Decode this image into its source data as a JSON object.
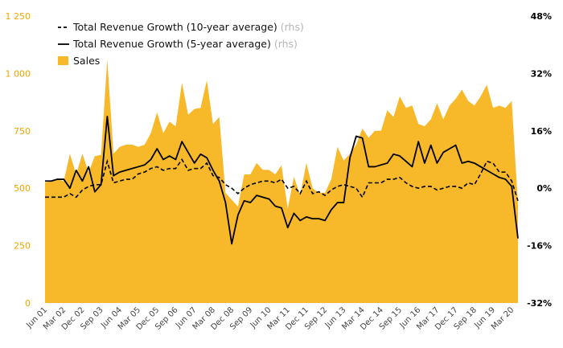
{
  "chart_data": {
    "type": "area",
    "legend": {
      "placement": "top-left",
      "rhs_tag": "(rhs)",
      "entries": [
        {
          "name": "Total Revenue Growth (10-year average)",
          "style": "dashed-line",
          "axis": "right"
        },
        {
          "name": "Total Revenue Growth (5-year average)",
          "style": "solid-line",
          "axis": "right"
        },
        {
          "name": "Sales",
          "style": "area",
          "axis": "left"
        }
      ]
    },
    "left_axis": {
      "ylim": [
        0,
        1250
      ],
      "ticks": [
        0,
        250,
        500,
        750,
        1000,
        1250
      ],
      "tick_labels": [
        "0",
        "250",
        "500",
        "750",
        "1 000",
        "1 250"
      ]
    },
    "right_axis": {
      "ylim": [
        -32,
        48
      ],
      "ticks": [
        -32,
        -16,
        0,
        16,
        32,
        48
      ],
      "tick_labels": [
        "-32%",
        "-16%",
        "0%",
        "16%",
        "32%",
        "48%"
      ]
    },
    "x_tick_labels": [
      "Jun 01",
      "Mar 02",
      "Dec 02",
      "Sep 03",
      "Jun 04",
      "Mar 05",
      "Dec 05",
      "Sep 06",
      "Jun 07",
      "Mar 08",
      "Dec 08",
      "Sep 09",
      "Jun 10",
      "Mar 11",
      "Dec 11",
      "Sep 12",
      "Jun 13",
      "Mar 14",
      "Dec 14",
      "Sep 15",
      "Jun 16",
      "Mar 17",
      "Dec 17",
      "Sep 18",
      "Jun 19",
      "Mar 20"
    ],
    "x_start": "Jun 01",
    "x_step_months": 3,
    "sales": [
      525,
      530,
      540,
      530,
      650,
      560,
      650,
      570,
      640,
      645,
      1060,
      650,
      680,
      690,
      690,
      680,
      690,
      740,
      830,
      740,
      790,
      770,
      960,
      820,
      845,
      850,
      970,
      780,
      810,
      480,
      450,
      420,
      560,
      560,
      610,
      580,
      580,
      560,
      600,
      410,
      550,
      470,
      610,
      500,
      480,
      480,
      540,
      680,
      620,
      650,
      690,
      760,
      720,
      750,
      750,
      840,
      810,
      900,
      850,
      860,
      780,
      770,
      800,
      870,
      800,
      860,
      890,
      930,
      880,
      860,
      900,
      950,
      850,
      860,
      850,
      880,
      430
    ],
    "growth_10y": [
      -2.5,
      -2.5,
      -2.5,
      -2.5,
      -1.5,
      -2.5,
      -0.5,
      0.5,
      1,
      1,
      7.5,
      1.5,
      2,
      2.5,
      2.5,
      4,
      4.5,
      5.5,
      6,
      5,
      5.5,
      5.5,
      8,
      5,
      5.5,
      5.5,
      7,
      3.5,
      3,
      1,
      0,
      -1.5,
      0,
      1,
      1.5,
      2,
      2,
      1.5,
      2.5,
      0,
      0.5,
      -1.5,
      2,
      -1.5,
      -1,
      -2,
      -0.5,
      0.5,
      1,
      0.5,
      0,
      -2.5,
      1.5,
      1.5,
      1.5,
      2.5,
      2.5,
      3,
      1.5,
      0.5,
      0,
      0.5,
      0.5,
      -0.5,
      0,
      0.5,
      0.5,
      0,
      1.5,
      1,
      4,
      7.5,
      7,
      4.5,
      4.5,
      2,
      -3.5
    ],
    "growth_5y": [
      2,
      2,
      2.5,
      2.5,
      0,
      5,
      2,
      6,
      -1,
      1,
      20,
      3.5,
      4.5,
      5,
      5.5,
      6,
      6.5,
      8,
      11,
      8,
      9,
      8,
      13,
      10,
      7,
      9.5,
      8.5,
      5,
      2,
      -4,
      -15.5,
      -7.5,
      -3.5,
      -4,
      -2,
      -2.5,
      -3,
      -5,
      -5.5,
      -11,
      -7,
      -9,
      -8,
      -8.5,
      -8.5,
      -9,
      -6,
      -4,
      -4,
      8.5,
      14.5,
      14,
      6,
      6,
      6.5,
      7,
      9.5,
      9,
      7.5,
      6,
      13,
      7,
      12,
      7,
      10,
      11,
      12,
      7,
      7.5,
      7,
      6,
      5,
      4,
      3,
      2.5,
      0.5,
      -14
    ]
  }
}
